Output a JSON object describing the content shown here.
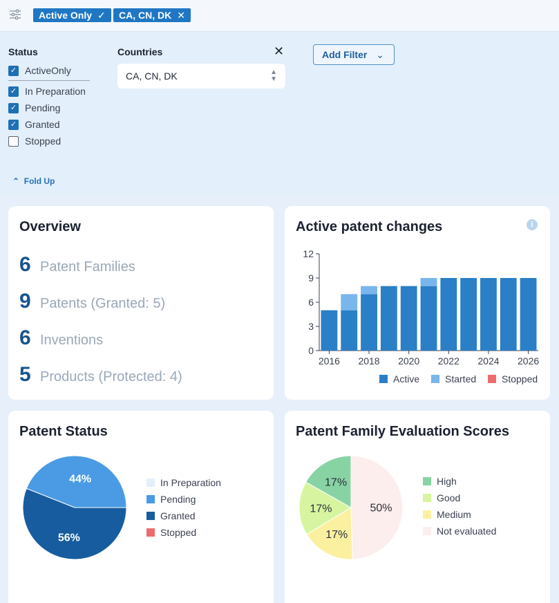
{
  "topbar": {
    "chips": [
      {
        "label": "Active Only",
        "icon": "check-icon",
        "glyph": "✓"
      },
      {
        "label": "CA, CN, DK",
        "icon": "close-icon",
        "glyph": "✕"
      }
    ]
  },
  "filters": {
    "status_label": "Status",
    "status_options": [
      {
        "label": "ActiveOnly",
        "checked": true
      },
      {
        "label": "In Preparation",
        "checked": true
      },
      {
        "label": "Pending",
        "checked": true
      },
      {
        "label": "Granted",
        "checked": true
      },
      {
        "label": "Stopped",
        "checked": false
      }
    ],
    "countries_label": "Countries",
    "countries_value": "CA, CN, DK",
    "close_glyph": "✕",
    "add_filter_label": "Add Filter",
    "fold_up_label": "Fold Up"
  },
  "overview": {
    "title": "Overview",
    "rows": [
      {
        "value": "6",
        "label": "Patent Families"
      },
      {
        "value": "9",
        "label": "Patents (Granted: 5)"
      },
      {
        "value": "6",
        "label": "Inventions"
      },
      {
        "value": "5",
        "label": "Products (Protected: 4)"
      }
    ]
  },
  "patent_changes": {
    "title": "Active patent changes",
    "info_glyph": "i"
  },
  "patent_status": {
    "title": "Patent Status"
  },
  "evaluation": {
    "title": "Patent Family Evaluation Scores"
  },
  "colors": {
    "accent": "#1f77c4",
    "active": "#2a7fc6",
    "started": "#79b6ec",
    "stopped": "#ee6b6b",
    "in_preparation": "#e3eff9",
    "pending": "#4a9be3",
    "granted": "#175c9e",
    "high": "#88d3a4",
    "good": "#d7f5a0",
    "medium": "#fbf0a0",
    "not_evaluated": "#fdeeee"
  },
  "chart_data": [
    {
      "type": "bar",
      "title": "Active patent changes",
      "stacked": true,
      "x": [
        2016,
        2017,
        2018,
        2019,
        2020,
        2021,
        2022,
        2023,
        2024,
        2025,
        2026
      ],
      "x_ticks": [
        "2016",
        "2018",
        "2020",
        "2022",
        "2024",
        "2026"
      ],
      "y_ticks": [
        "0",
        "3",
        "6",
        "9",
        "12"
      ],
      "ylim": [
        0,
        12
      ],
      "series": [
        {
          "name": "Active",
          "values": [
            5,
            5,
            7,
            8,
            8,
            8,
            9,
            9,
            9,
            9,
            9
          ]
        },
        {
          "name": "Started",
          "values": [
            0,
            2,
            1,
            0,
            0,
            1,
            0,
            0,
            0,
            0,
            0
          ]
        },
        {
          "name": "Stopped",
          "values": [
            0,
            0,
            0,
            0,
            0,
            0,
            0,
            0,
            0,
            0,
            0
          ]
        }
      ],
      "legend": "bottom"
    },
    {
      "type": "pie",
      "title": "Patent Status",
      "slices": [
        {
          "name": "In Preparation",
          "value": 0,
          "label": ""
        },
        {
          "name": "Pending",
          "value": 44,
          "label": "44%"
        },
        {
          "name": "Granted",
          "value": 56,
          "label": "56%"
        },
        {
          "name": "Stopped",
          "value": 0,
          "label": ""
        }
      ],
      "legend": "right"
    },
    {
      "type": "pie",
      "title": "Patent Family Evaluation Scores",
      "slices": [
        {
          "name": "High",
          "value": 17,
          "label": "17%"
        },
        {
          "name": "Good",
          "value": 17,
          "label": "17%"
        },
        {
          "name": "Medium",
          "value": 17,
          "label": "17%"
        },
        {
          "name": "Not evaluated",
          "value": 50,
          "label": "50%"
        }
      ],
      "legend": "right"
    }
  ]
}
